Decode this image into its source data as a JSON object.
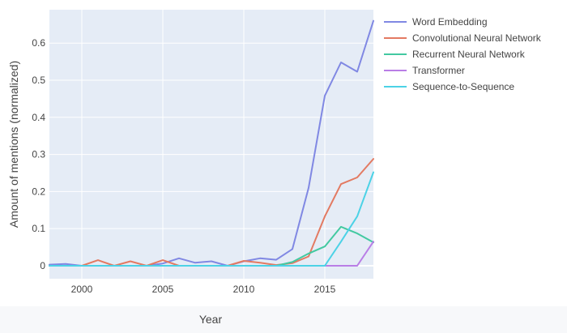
{
  "chart_data": {
    "type": "line",
    "xlabel": "Year",
    "ylabel": "Amount of mentions (normalized)",
    "xlim": [
      1998,
      2018
    ],
    "ylim": [
      -0.035,
      0.69
    ],
    "x_ticks": [
      2000,
      2005,
      2010,
      2015
    ],
    "y_ticks": [
      0,
      0.1,
      0.2,
      0.3,
      0.4,
      0.5,
      0.6
    ],
    "x_tick_labels": [
      "2000",
      "2005",
      "2010",
      "2015"
    ],
    "y_tick_labels": [
      "0",
      "0.1",
      "0.2",
      "0.3",
      "0.4",
      "0.5",
      "0.6"
    ],
    "grid": true,
    "plot_background": "#e5ecf6",
    "legend_position": "right",
    "x": [
      1998,
      1999,
      2000,
      2001,
      2002,
      2003,
      2004,
      2005,
      2006,
      2007,
      2008,
      2009,
      2010,
      2011,
      2012,
      2013,
      2014,
      2015,
      2016,
      2017,
      2018
    ],
    "series": [
      {
        "name": "Word Embedding",
        "color": "#8088e3",
        "values": [
          0.003,
          0.005,
          0.0,
          0.0,
          0.0,
          0.0,
          0.0,
          0.006,
          0.02,
          0.008,
          0.012,
          0.0,
          0.012,
          0.02,
          0.016,
          0.045,
          0.21,
          0.458,
          0.548,
          0.523,
          0.66
        ]
      },
      {
        "name": "Convolutional Neural Network",
        "color": "#e37a62",
        "values": [
          0.0,
          0.0,
          0.0,
          0.015,
          0.0,
          0.012,
          0.0,
          0.015,
          0.0,
          0.0,
          0.0,
          0.0,
          0.013,
          0.008,
          0.002,
          0.007,
          0.025,
          0.133,
          0.22,
          0.238,
          0.288
        ]
      },
      {
        "name": "Recurrent Neural Network",
        "color": "#43c9a1",
        "values": [
          0.0,
          0.0,
          0.0,
          0.0,
          0.0,
          0.0,
          0.0,
          0.0,
          0.0,
          0.0,
          0.0,
          0.0,
          0.0,
          0.0,
          0.0,
          0.01,
          0.033,
          0.052,
          0.105,
          0.087,
          0.063
        ]
      },
      {
        "name": "Transformer",
        "color": "#b97ee6",
        "values": [
          0.0,
          0.0,
          0.0,
          0.0,
          0.0,
          0.0,
          0.0,
          0.0,
          0.0,
          0.0,
          0.0,
          0.0,
          0.0,
          0.0,
          0.0,
          0.0,
          0.0,
          0.0,
          0.0,
          0.0,
          0.065
        ]
      },
      {
        "name": "Sequence-to-Sequence",
        "color": "#4cd2e6",
        "values": [
          0.0,
          0.0,
          0.0,
          0.0,
          0.0,
          0.0,
          0.0,
          0.0,
          0.0,
          0.0,
          0.0,
          0.0,
          0.0,
          0.0,
          0.0,
          0.0,
          0.0,
          0.0,
          0.065,
          0.133,
          0.252
        ]
      }
    ]
  }
}
